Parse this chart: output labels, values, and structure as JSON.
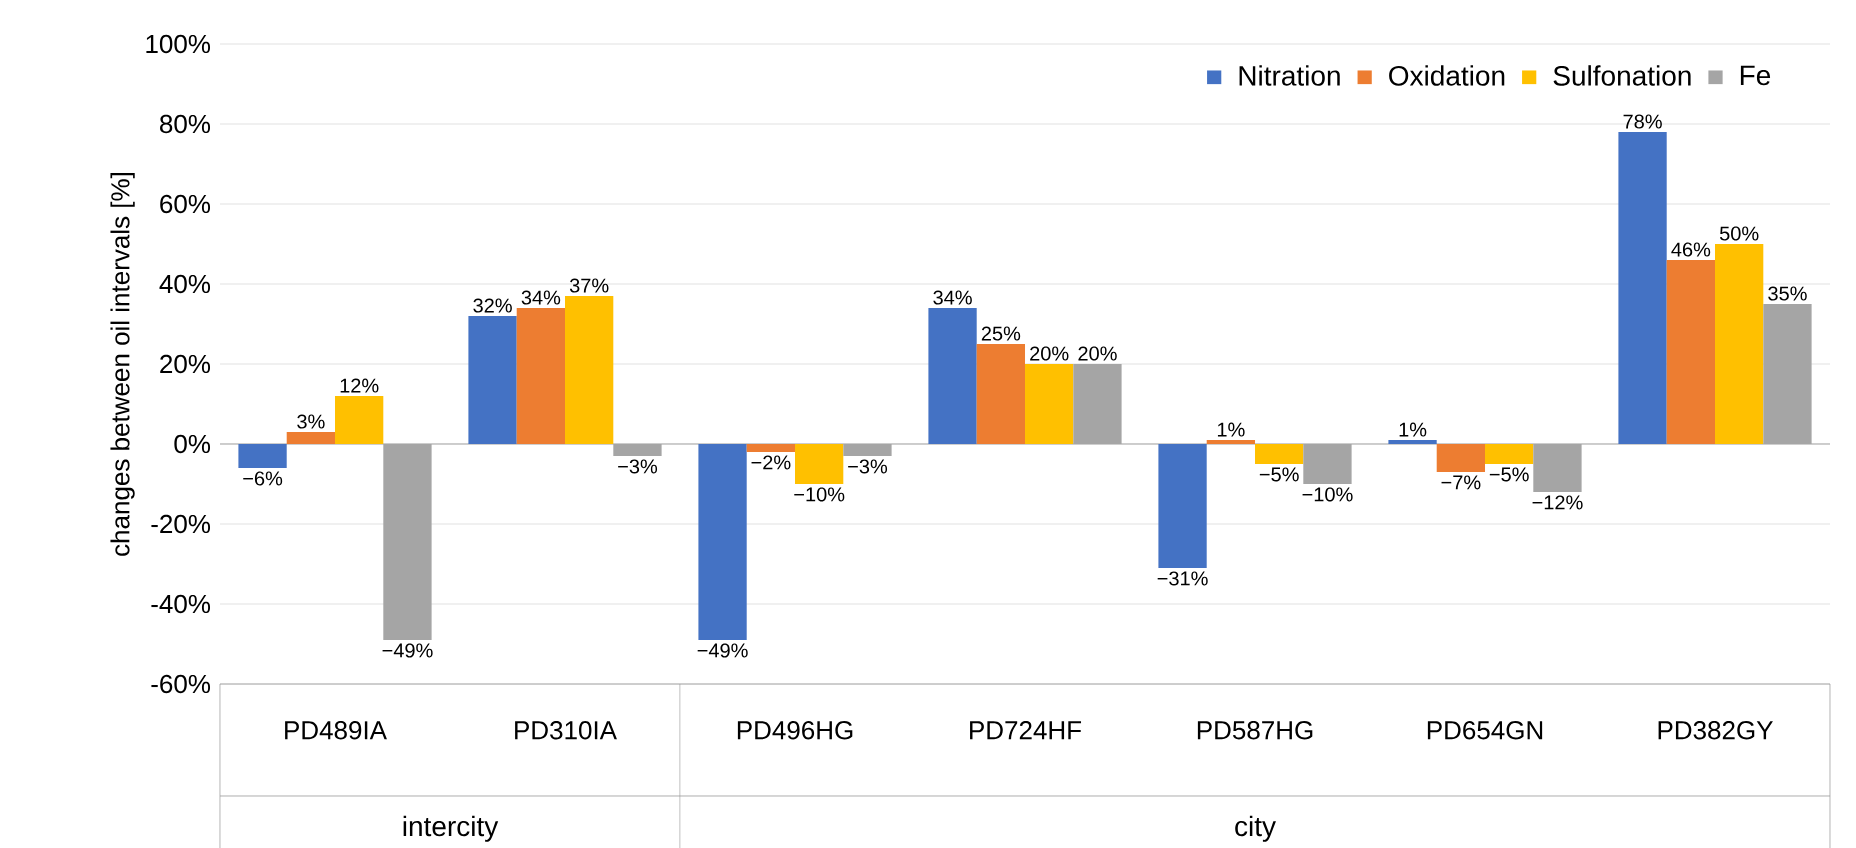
{
  "chart_data": {
    "type": "bar",
    "ylabel": "changes between oil intervals [%]",
    "categories": [
      "PD489IA",
      "PD310IA",
      "PD496HG",
      "PD724HF",
      "PD587HG",
      "PD654GN",
      "PD382GY"
    ],
    "series": [
      {
        "name": "Nitration",
        "color": "#4472c4",
        "values": [
          -6,
          32,
          -49,
          34,
          -31,
          1,
          78
        ],
        "value_labels": [
          "−6%",
          "32%",
          "−49%",
          "34%",
          "−31%",
          "1%",
          "78%"
        ]
      },
      {
        "name": "Oxidation",
        "color": "#ed7d31",
        "values": [
          3,
          34,
          -2,
          25,
          1,
          -7,
          46
        ],
        "value_labels": [
          "3%",
          "34%",
          "−2%",
          "25%",
          "1%",
          "−7%",
          "46%"
        ]
      },
      {
        "name": "Sulfonation",
        "color": "#ffc000",
        "values": [
          12,
          37,
          -10,
          20,
          -5,
          -5,
          50
        ],
        "value_labels": [
          "12%",
          "37%",
          "−10%",
          "20%",
          "−5%",
          "−5%",
          "50%"
        ]
      },
      {
        "name": "Fe",
        "color": "#a5a5a5",
        "values": [
          -49,
          -3,
          -3,
          20,
          -10,
          -12,
          35
        ],
        "value_labels": [
          "−49%",
          "−3%",
          "−3%",
          "20%",
          "−10%",
          "−12%",
          "35%"
        ]
      }
    ],
    "ylim": [
      -60,
      100
    ],
    "yticks": [
      {
        "value": -60,
        "label": "-60%"
      },
      {
        "value": -40,
        "label": "-40%"
      },
      {
        "value": -20,
        "label": "-20%"
      },
      {
        "value": 0,
        "label": "0%"
      },
      {
        "value": 20,
        "label": "20%"
      },
      {
        "value": 40,
        "label": "40%"
      },
      {
        "value": 60,
        "label": "60%"
      },
      {
        "value": 80,
        "label": "80%"
      },
      {
        "value": 100,
        "label": "100%"
      }
    ],
    "grid": "y",
    "legend": "top right",
    "annotations": [
      "intercity",
      "city"
    ]
  }
}
